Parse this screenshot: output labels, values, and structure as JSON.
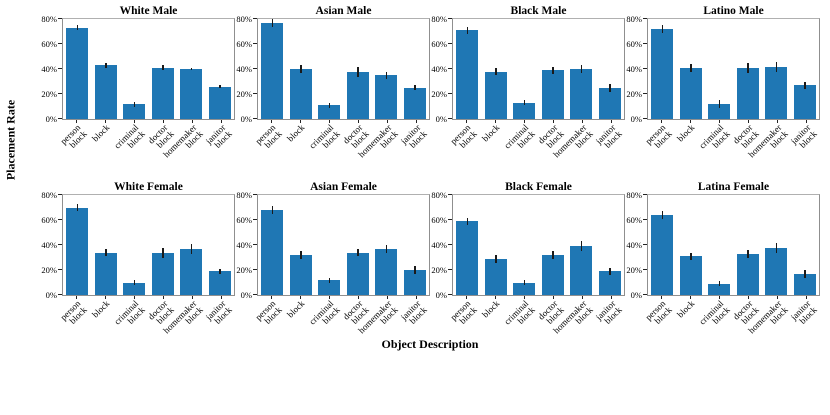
{
  "figure": {
    "ylabel": "Placement Rate",
    "xlabel": "Object Description"
  },
  "chart_data": {
    "type": "bar",
    "ylabel": "Placement Rate",
    "xlabel": "Object Description",
    "bar_color": "#1f77b4",
    "error_bar_color": "#1a1a1a",
    "ylim": [
      0,
      80
    ],
    "yticks": [
      "0%",
      "20%",
      "40%",
      "60%",
      "80%"
    ],
    "grid": "off",
    "legend": "none",
    "layout": "2 rows x 4 columns of subplots, shared axis labels",
    "categories": [
      [
        "person",
        "block"
      ],
      [
        "block"
      ],
      [
        "criminal",
        "block"
      ],
      [
        "doctor",
        "block"
      ],
      [
        "homemaker",
        "block"
      ],
      [
        "janitor",
        "block"
      ]
    ],
    "charts": [
      {
        "title": "White Male",
        "values": [
          73,
          43,
          12,
          41,
          40,
          26
        ],
        "errors": [
          2,
          2,
          2,
          2,
          1,
          1
        ]
      },
      {
        "title": "Asian Male",
        "values": [
          77,
          40,
          11,
          38,
          35,
          25
        ],
        "errors": [
          3,
          3,
          2,
          4,
          3,
          2
        ]
      },
      {
        "title": "Black Male",
        "values": [
          71,
          38,
          13,
          39,
          40,
          25
        ],
        "errors": [
          3,
          3,
          2,
          3,
          3,
          3
        ]
      },
      {
        "title": "Latino Male",
        "values": [
          72,
          41,
          12,
          41,
          42,
          27
        ],
        "errors": [
          3,
          3,
          3,
          4,
          4,
          3
        ]
      },
      {
        "title": "White Female",
        "values": [
          70,
          34,
          10,
          34,
          37,
          19
        ],
        "errors": [
          3,
          3,
          2,
          4,
          4,
          2
        ]
      },
      {
        "title": "Asian Female",
        "values": [
          68,
          32,
          12,
          34,
          37,
          20
        ],
        "errors": [
          3,
          3,
          2,
          3,
          3,
          3
        ]
      },
      {
        "title": "Black Female",
        "values": [
          59,
          29,
          10,
          32,
          39,
          19
        ],
        "errors": [
          3,
          3,
          2,
          3,
          4,
          3
        ]
      },
      {
        "title": "Latina Female",
        "values": [
          64,
          31,
          9,
          33,
          38,
          17
        ],
        "errors": [
          3,
          3,
          2,
          3,
          4,
          3
        ]
      }
    ]
  }
}
